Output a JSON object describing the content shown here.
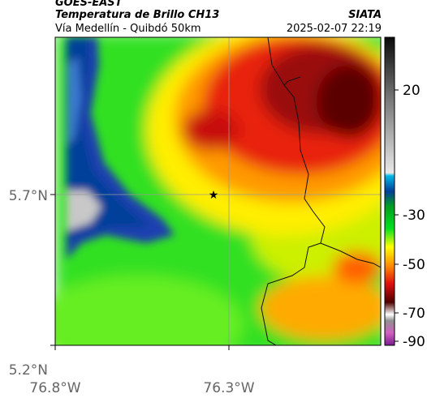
{
  "header": {
    "satellite": "GOES-EAST",
    "product": "Temperatura de Brillo CH13",
    "organization": "SIATA",
    "location": "Vía Medellín - Quibdó 50km",
    "timestamp": "2025-02-07 22:19"
  },
  "map": {
    "lat_labels": [
      "5.7°N",
      "5.2°N"
    ],
    "lon_labels": [
      "76.8°W",
      "76.3°W"
    ],
    "marker_icon": "star-icon",
    "gridlines": true
  },
  "colorbar": {
    "labels": [
      "20",
      "-30",
      "-50",
      "-70",
      "-90"
    ],
    "palette": [
      "#1a1a1a",
      "#c0c0c0",
      "#00b0e0",
      "#003f9a",
      "#00d020",
      "#ffff00",
      "#ff8000",
      "#d01010",
      "#500000",
      "#ffffff",
      "#8a2090"
    ]
  }
}
